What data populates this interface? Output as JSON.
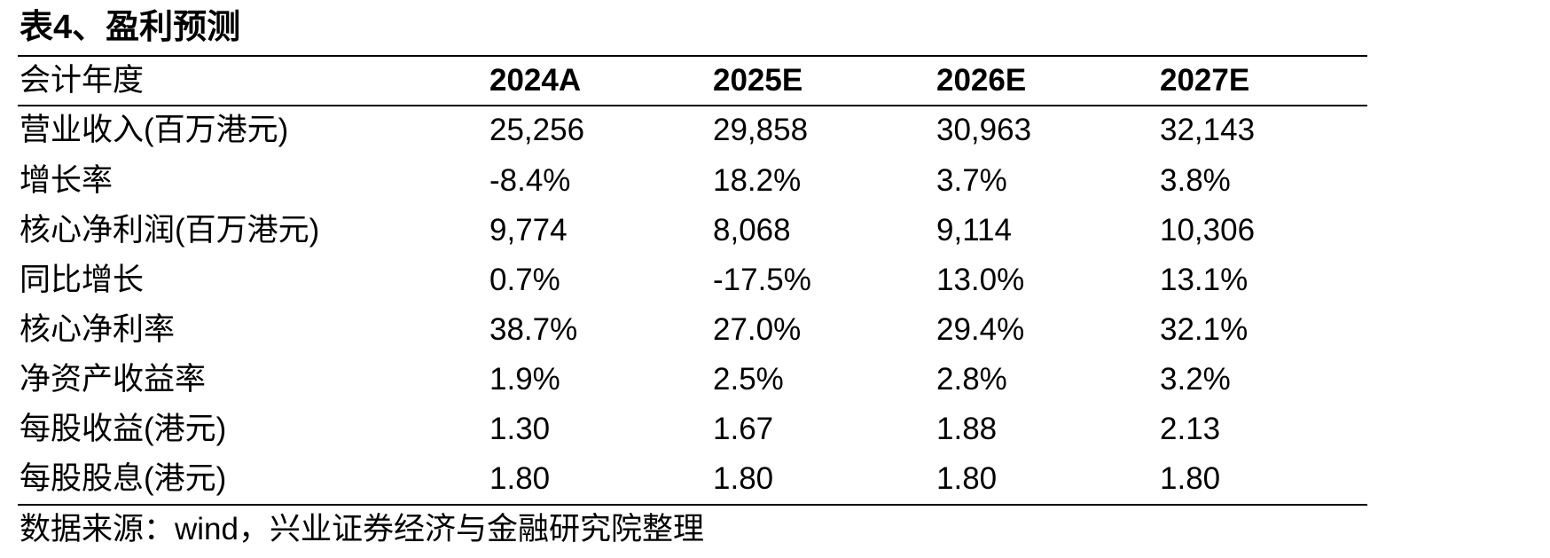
{
  "title": "表4、盈利预测",
  "header": {
    "label": "会计年度",
    "years": [
      "2024A",
      "2025E",
      "2026E",
      "2027E"
    ]
  },
  "rows": [
    {
      "label": "营业收入(百万港元)",
      "values": [
        "25,256",
        "29,858",
        "30,963",
        "32,143"
      ]
    },
    {
      "label": "增长率",
      "values": [
        "-8.4%",
        "18.2%",
        "3.7%",
        "3.8%"
      ]
    },
    {
      "label": "核心净利润(百万港元)",
      "values": [
        "9,774",
        "8,068",
        "9,114",
        "10,306"
      ]
    },
    {
      "label": "同比增长",
      "values": [
        "0.7%",
        "-17.5%",
        "13.0%",
        "13.1%"
      ]
    },
    {
      "label": "核心净利率",
      "values": [
        "38.7%",
        "27.0%",
        "29.4%",
        "32.1%"
      ]
    },
    {
      "label": "净资产收益率",
      "values": [
        "1.9%",
        "2.5%",
        "2.8%",
        "3.2%"
      ]
    },
    {
      "label": "每股收益(港元)",
      "values": [
        "1.30",
        "1.67",
        "1.88",
        "2.13"
      ]
    },
    {
      "label": "每股股息(港元)",
      "values": [
        "1.80",
        "1.80",
        "1.80",
        "1.80"
      ]
    }
  ],
  "source": "数据来源：wind，兴业证券经济与金融研究院整理"
}
